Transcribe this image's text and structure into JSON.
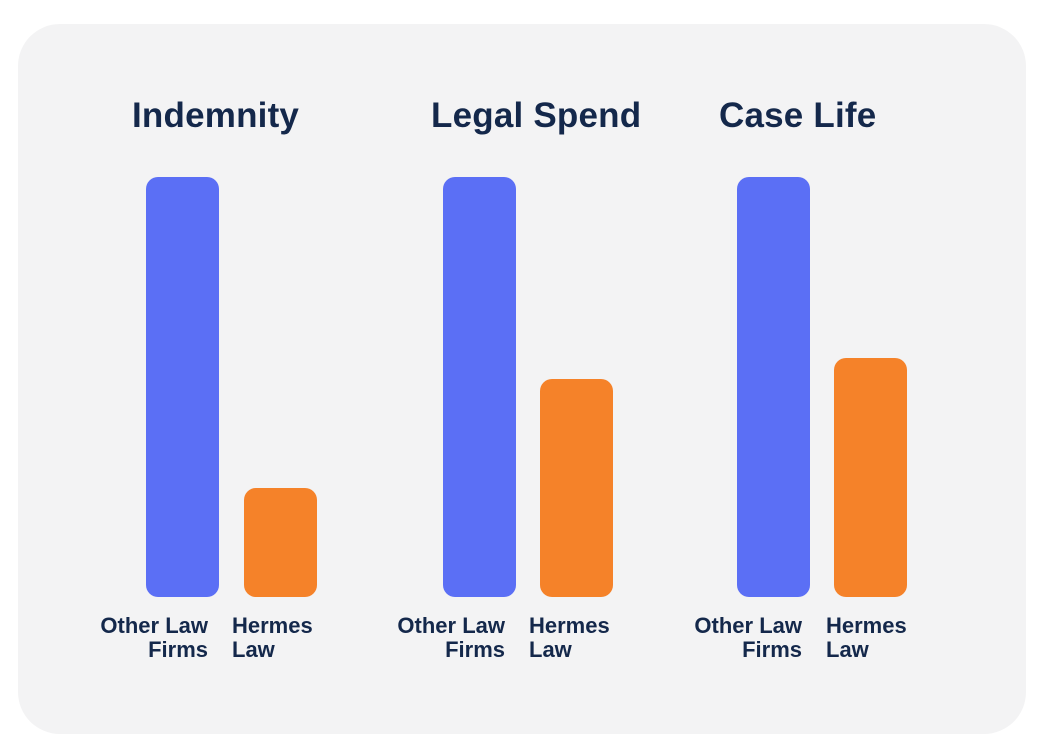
{
  "chart_data": [
    {
      "type": "bar",
      "title": "Indemnity",
      "categories": [
        [
          "Other Law",
          "Firms"
        ],
        [
          "Hermes",
          "Law"
        ]
      ],
      "values": [
        100,
        26
      ],
      "ylim": [
        0,
        100
      ],
      "colors": [
        "#5b6ff5",
        "#f58229"
      ]
    },
    {
      "type": "bar",
      "title": "Legal Spend",
      "categories": [
        [
          "Other Law",
          "Firms"
        ],
        [
          "Hermes",
          "Law"
        ]
      ],
      "values": [
        100,
        52
      ],
      "ylim": [
        0,
        100
      ],
      "colors": [
        "#5b6ff5",
        "#f58229"
      ]
    },
    {
      "type": "bar",
      "title": "Case Life",
      "categories": [
        [
          "Other Law",
          "Firms"
        ],
        [
          "Hermes",
          "Law"
        ]
      ],
      "values": [
        100,
        57
      ],
      "ylim": [
        0,
        100
      ],
      "colors": [
        "#5b6ff5",
        "#f58229"
      ]
    }
  ]
}
